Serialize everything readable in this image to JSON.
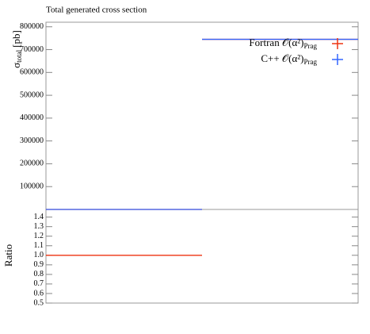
{
  "chart_data": {
    "type": "histogram",
    "title": "Total generated cross section",
    "ylabel": "σ",
    "ylabel_sub": "total",
    "ylabel_unit": "[pb]",
    "bins": [
      0,
      1,
      2
    ],
    "xlim": [
      0,
      2
    ],
    "ylim": [
      0,
      820000
    ],
    "yticks": [
      100000,
      200000,
      300000,
      400000,
      500000,
      600000,
      700000,
      800000
    ],
    "series": [
      {
        "name": "Fortran 𝒪(α²)",
        "name_sub": "Prag",
        "color": "#ee3311",
        "values": [
          0,
          745000
        ]
      },
      {
        "name": "C++ 𝒪(α²)",
        "name_sub": "Prag",
        "color": "#3366ff",
        "values": [
          0,
          745000
        ]
      }
    ],
    "ratio": {
      "ylabel": "Ratio",
      "color": "#ee3311",
      "values": [
        1.0,
        null
      ],
      "ylim": [
        0.5,
        1.48
      ],
      "yticks": [
        0.5,
        0.6,
        0.7,
        0.8,
        0.9,
        {
          "value": 1.0,
          "label": "1.0"
        },
        1.1,
        1.2,
        1.3,
        1.4
      ]
    }
  }
}
